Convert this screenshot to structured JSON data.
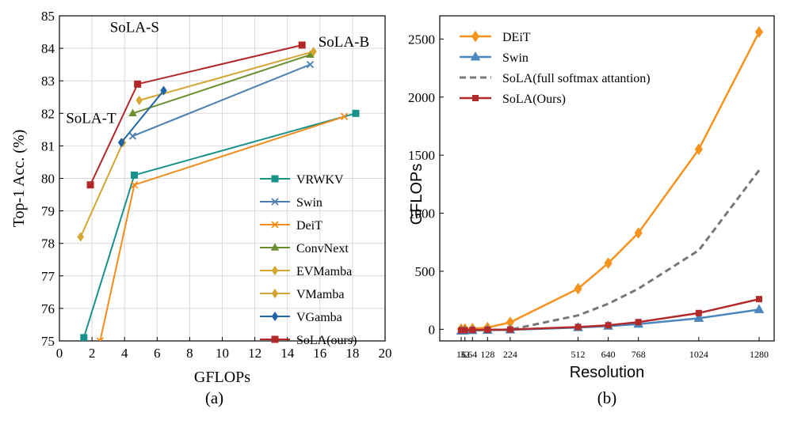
{
  "chart_data": [
    {
      "type": "line",
      "panel_label": "(a)",
      "xlabel": "GFLOPs",
      "ylabel": "Top-1 Acc. (%)",
      "xlim": [
        0,
        20
      ],
      "ylim": [
        75,
        85
      ],
      "xticks": [
        0,
        2,
        4,
        6,
        8,
        10,
        12,
        14,
        16,
        18,
        20
      ],
      "yticks": [
        75,
        76,
        77,
        78,
        79,
        80,
        81,
        82,
        83,
        84,
        85
      ],
      "grid": true,
      "legend_position": "bottom-right",
      "annotations": [
        {
          "text": "SoLA-T",
          "x": 0.4,
          "y": 81.7
        },
        {
          "text": "SoLA-S",
          "x": 3.1,
          "y": 84.5
        },
        {
          "text": "SoLA-B",
          "x": 15.9,
          "y": 84.05
        }
      ],
      "series": [
        {
          "name": "VRWKV",
          "color": "#17918a",
          "marker": "square",
          "x": [
            1.5,
            4.6,
            18.2
          ],
          "y": [
            75.1,
            80.1,
            82.0
          ]
        },
        {
          "name": "Swin",
          "color": "#4a7fb0",
          "marker": "x",
          "x": [
            4.5,
            15.4
          ],
          "y": [
            81.3,
            83.5
          ]
        },
        {
          "name": "DeiT",
          "color": "#f28c1a",
          "marker": "x",
          "x": [
            2.5,
            4.6,
            17.5
          ],
          "y": [
            75.0,
            79.8,
            81.9
          ]
        },
        {
          "name": "ConvNext",
          "color": "#6a8f2f",
          "marker": "triangle",
          "x": [
            4.5,
            15.4
          ],
          "y": [
            82.0,
            83.8
          ]
        },
        {
          "name": "EVMamba",
          "color": "#d4a531",
          "marker": "diamond",
          "x": [
            1.3,
            3.9
          ],
          "y": [
            78.2,
            81.1
          ]
        },
        {
          "name": "VMamba",
          "color": "#d4a531",
          "marker": "diamond",
          "x": [
            4.9,
            15.6
          ],
          "y": [
            82.4,
            83.9
          ]
        },
        {
          "name": "VGamba",
          "color": "#2065a8",
          "marker": "diamond",
          "x": [
            3.8,
            6.4
          ],
          "y": [
            81.1,
            82.7
          ]
        },
        {
          "name": "SoLA(ours)",
          "color": "#b22828",
          "marker": "square",
          "x": [
            1.9,
            4.8,
            14.9
          ],
          "y": [
            79.8,
            82.9,
            84.1
          ]
        }
      ]
    },
    {
      "type": "line",
      "panel_label": "(b)",
      "xlabel": "Resolution",
      "ylabel": "GFLOPs",
      "categories": [
        16,
        32,
        64,
        128,
        224,
        512,
        640,
        768,
        1024,
        1280
      ],
      "xtick_labels": [
        "16",
        "32",
        "64",
        "128",
        "224",
        "512",
        "640",
        "768",
        "1024",
        "1280"
      ],
      "ylim": [
        -100,
        2700
      ],
      "yticks": [
        0,
        500,
        1000,
        1500,
        2000,
        2500
      ],
      "grid": false,
      "legend_position": "top-left",
      "series": [
        {
          "name": "DEiT",
          "color": "#f5931e",
          "marker": "diamond",
          "style": "solid",
          "values": [
            1,
            3,
            6,
            15,
            60,
            350,
            570,
            830,
            1550,
            2560
          ]
        },
        {
          "name": "Swin",
          "color": "#4a86be",
          "marker": "triangle",
          "style": "solid",
          "values": [
            -15,
            -13,
            -10,
            -8,
            -5,
            15,
            28,
            45,
            95,
            170
          ]
        },
        {
          "name": "SoLA(full softmax attantion)",
          "color": "#777777",
          "marker": "none",
          "style": "dashed",
          "values": [
            -5,
            -5,
            -5,
            -5,
            -3,
            120,
            220,
            350,
            680,
            1370
          ]
        },
        {
          "name": "SoLA(Ours)",
          "color": "#b22a2a",
          "marker": "square",
          "style": "solid",
          "values": [
            -8,
            -8,
            -6,
            -4,
            -2,
            20,
            35,
            62,
            140,
            260
          ]
        }
      ]
    }
  ]
}
